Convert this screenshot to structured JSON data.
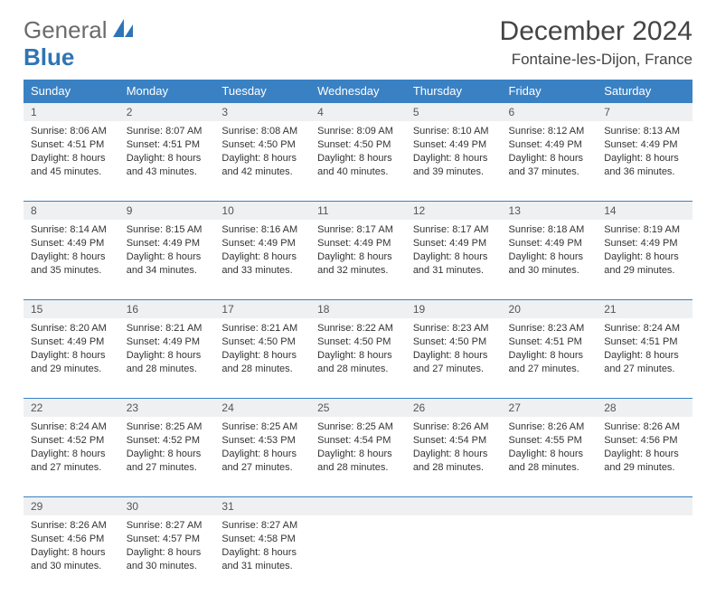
{
  "brand": {
    "part1": "General",
    "part2": "Blue"
  },
  "title": "December 2024",
  "location": "Fontaine-les-Dijon, France",
  "colors": {
    "header_bg": "#3a81c4",
    "header_text": "#ffffff",
    "daynum_bg": "#eef0f2",
    "rule": "#3a81c4",
    "brand_gray": "#6b6b6b",
    "brand_blue": "#2f74b5"
  },
  "weekdays": [
    "Sunday",
    "Monday",
    "Tuesday",
    "Wednesday",
    "Thursday",
    "Friday",
    "Saturday"
  ],
  "weeks": [
    [
      {
        "n": "1",
        "sunrise": "8:06 AM",
        "sunset": "4:51 PM",
        "dlh": "8",
        "dlm": "45"
      },
      {
        "n": "2",
        "sunrise": "8:07 AM",
        "sunset": "4:51 PM",
        "dlh": "8",
        "dlm": "43"
      },
      {
        "n": "3",
        "sunrise": "8:08 AM",
        "sunset": "4:50 PM",
        "dlh": "8",
        "dlm": "42"
      },
      {
        "n": "4",
        "sunrise": "8:09 AM",
        "sunset": "4:50 PM",
        "dlh": "8",
        "dlm": "40"
      },
      {
        "n": "5",
        "sunrise": "8:10 AM",
        "sunset": "4:49 PM",
        "dlh": "8",
        "dlm": "39"
      },
      {
        "n": "6",
        "sunrise": "8:12 AM",
        "sunset": "4:49 PM",
        "dlh": "8",
        "dlm": "37"
      },
      {
        "n": "7",
        "sunrise": "8:13 AM",
        "sunset": "4:49 PM",
        "dlh": "8",
        "dlm": "36"
      }
    ],
    [
      {
        "n": "8",
        "sunrise": "8:14 AM",
        "sunset": "4:49 PM",
        "dlh": "8",
        "dlm": "35"
      },
      {
        "n": "9",
        "sunrise": "8:15 AM",
        "sunset": "4:49 PM",
        "dlh": "8",
        "dlm": "34"
      },
      {
        "n": "10",
        "sunrise": "8:16 AM",
        "sunset": "4:49 PM",
        "dlh": "8",
        "dlm": "33"
      },
      {
        "n": "11",
        "sunrise": "8:17 AM",
        "sunset": "4:49 PM",
        "dlh": "8",
        "dlm": "32"
      },
      {
        "n": "12",
        "sunrise": "8:17 AM",
        "sunset": "4:49 PM",
        "dlh": "8",
        "dlm": "31"
      },
      {
        "n": "13",
        "sunrise": "8:18 AM",
        "sunset": "4:49 PM",
        "dlh": "8",
        "dlm": "30"
      },
      {
        "n": "14",
        "sunrise": "8:19 AM",
        "sunset": "4:49 PM",
        "dlh": "8",
        "dlm": "29"
      }
    ],
    [
      {
        "n": "15",
        "sunrise": "8:20 AM",
        "sunset": "4:49 PM",
        "dlh": "8",
        "dlm": "29"
      },
      {
        "n": "16",
        "sunrise": "8:21 AM",
        "sunset": "4:49 PM",
        "dlh": "8",
        "dlm": "28"
      },
      {
        "n": "17",
        "sunrise": "8:21 AM",
        "sunset": "4:50 PM",
        "dlh": "8",
        "dlm": "28"
      },
      {
        "n": "18",
        "sunrise": "8:22 AM",
        "sunset": "4:50 PM",
        "dlh": "8",
        "dlm": "28"
      },
      {
        "n": "19",
        "sunrise": "8:23 AM",
        "sunset": "4:50 PM",
        "dlh": "8",
        "dlm": "27"
      },
      {
        "n": "20",
        "sunrise": "8:23 AM",
        "sunset": "4:51 PM",
        "dlh": "8",
        "dlm": "27"
      },
      {
        "n": "21",
        "sunrise": "8:24 AM",
        "sunset": "4:51 PM",
        "dlh": "8",
        "dlm": "27"
      }
    ],
    [
      {
        "n": "22",
        "sunrise": "8:24 AM",
        "sunset": "4:52 PM",
        "dlh": "8",
        "dlm": "27"
      },
      {
        "n": "23",
        "sunrise": "8:25 AM",
        "sunset": "4:52 PM",
        "dlh": "8",
        "dlm": "27"
      },
      {
        "n": "24",
        "sunrise": "8:25 AM",
        "sunset": "4:53 PM",
        "dlh": "8",
        "dlm": "27"
      },
      {
        "n": "25",
        "sunrise": "8:25 AM",
        "sunset": "4:54 PM",
        "dlh": "8",
        "dlm": "28"
      },
      {
        "n": "26",
        "sunrise": "8:26 AM",
        "sunset": "4:54 PM",
        "dlh": "8",
        "dlm": "28"
      },
      {
        "n": "27",
        "sunrise": "8:26 AM",
        "sunset": "4:55 PM",
        "dlh": "8",
        "dlm": "28"
      },
      {
        "n": "28",
        "sunrise": "8:26 AM",
        "sunset": "4:56 PM",
        "dlh": "8",
        "dlm": "29"
      }
    ],
    [
      {
        "n": "29",
        "sunrise": "8:26 AM",
        "sunset": "4:56 PM",
        "dlh": "8",
        "dlm": "30"
      },
      {
        "n": "30",
        "sunrise": "8:27 AM",
        "sunset": "4:57 PM",
        "dlh": "8",
        "dlm": "30"
      },
      {
        "n": "31",
        "sunrise": "8:27 AM",
        "sunset": "4:58 PM",
        "dlh": "8",
        "dlm": "31"
      },
      null,
      null,
      null,
      null
    ]
  ],
  "labels": {
    "sunrise": "Sunrise:",
    "sunset": "Sunset:",
    "daylight_prefix": "Daylight:",
    "hours_word": "hours",
    "and_word": "and",
    "minutes_word": "minutes."
  }
}
